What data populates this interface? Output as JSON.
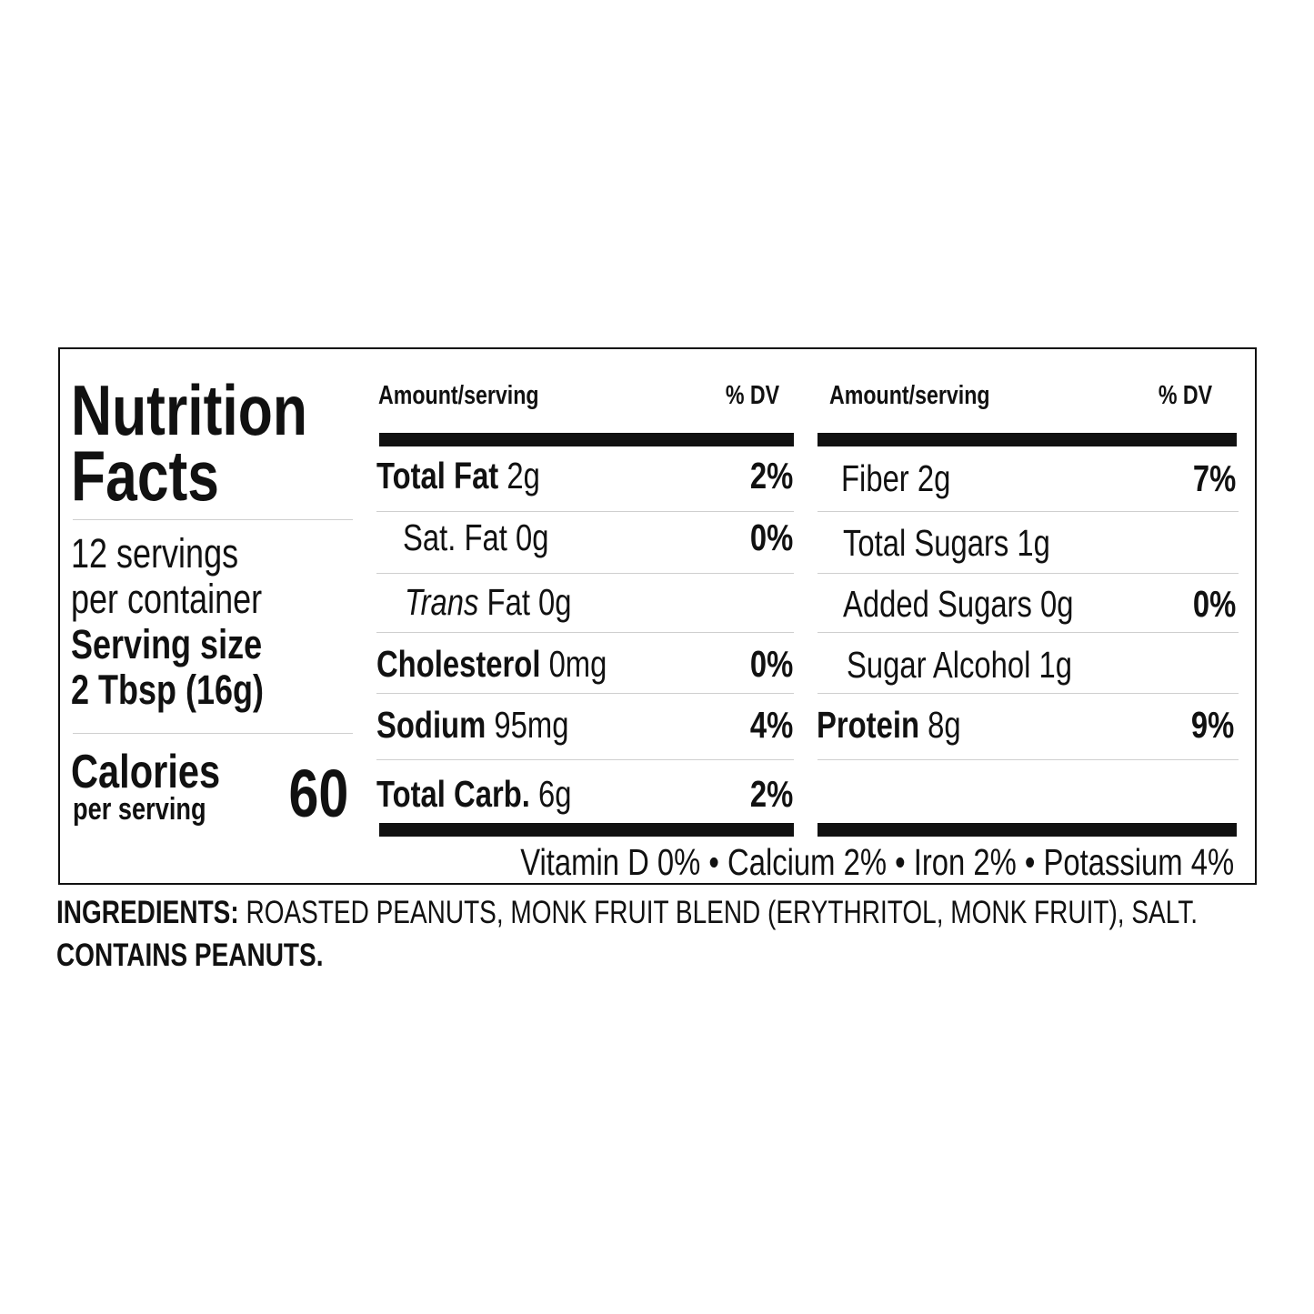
{
  "title_line1": "Nutrition",
  "title_line2": "Facts",
  "servings_line1": "12 servings",
  "servings_line2": "per container",
  "serving_size_label": "Serving size",
  "serving_size_value": "2 Tbsp (16g)",
  "calories_label": "Calories",
  "calories_sub": "per serving",
  "calories_value": "60",
  "columns": {
    "amount": "Amount/serving",
    "dv": "% DV"
  },
  "left_rows": [
    {
      "name": "Total Fat",
      "amount": "2g",
      "dv": "2%",
      "bold": true
    },
    {
      "name": "Sat. Fat",
      "amount": "0g",
      "dv": "0%",
      "bold": false
    },
    {
      "name": "Trans",
      "amount": "Fat 0g",
      "dv": "",
      "bold": false
    },
    {
      "name": "Cholesterol",
      "amount": "0mg",
      "dv": "0%",
      "bold": true
    },
    {
      "name": "Sodium",
      "amount": "95mg",
      "dv": "4%",
      "bold": true
    },
    {
      "name": "Total Carb.",
      "amount": "6g",
      "dv": "2%",
      "bold": true
    }
  ],
  "right_rows": [
    {
      "name": "Fiber 2g",
      "dv": "7%"
    },
    {
      "name": "Total Sugars 1g",
      "dv": ""
    },
    {
      "name": "Added Sugars 0g",
      "dv": "0%"
    },
    {
      "name": "Sugar Alcohol 1g",
      "dv": ""
    },
    {
      "name": "Protein",
      "amount": "8g",
      "dv": "9%"
    }
  ],
  "vitamins": "Vitamin D 0% • Calcium 2% • Iron 2% • Potassium 4%",
  "ingredients_label": "INGREDIENTS:",
  "ingredients_text": "ROASTED PEANUTS, MONK FRUIT BLEND (ERYTHRITOL, MONK FRUIT), SALT.",
  "allergen": "CONTAINS PEANUTS."
}
